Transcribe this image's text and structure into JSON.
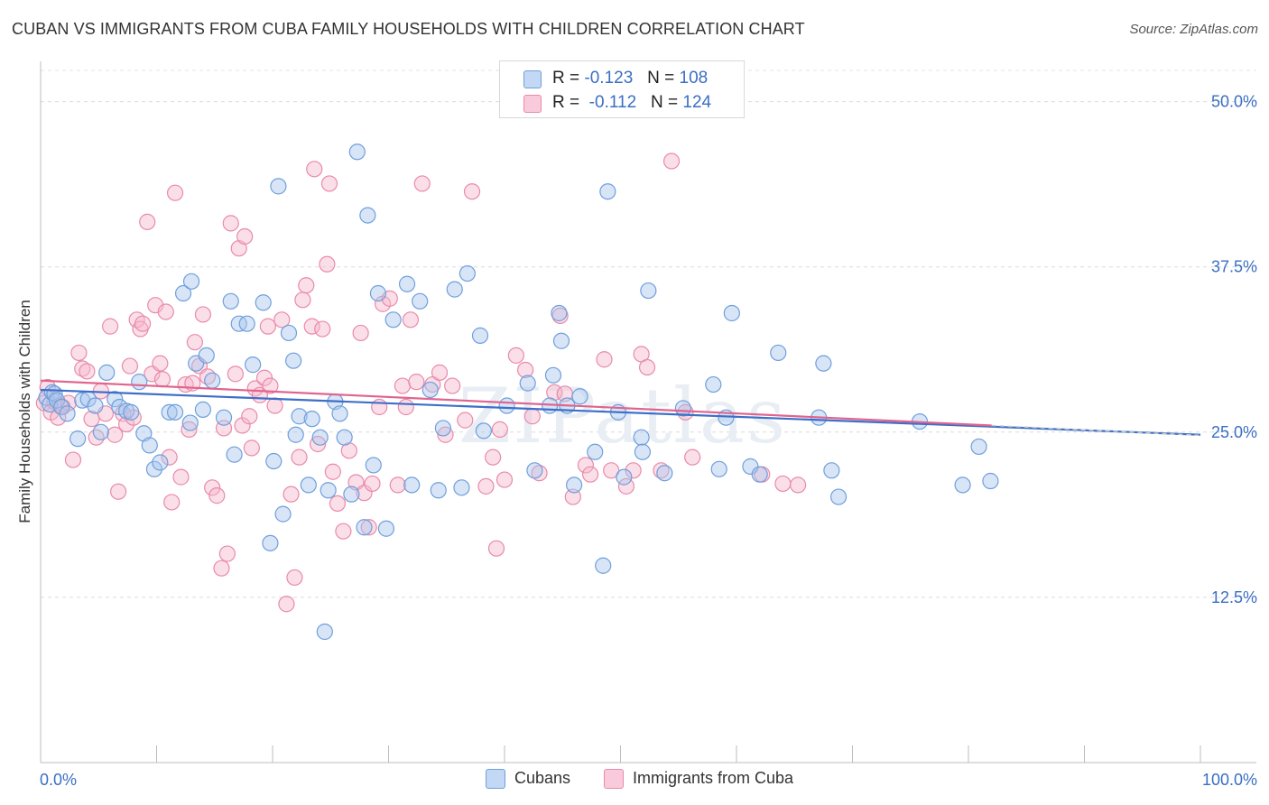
{
  "header": {
    "title": "CUBAN VS IMMIGRANTS FROM CUBA FAMILY HOUSEHOLDS WITH CHILDREN CORRELATION CHART",
    "source": "Source: ZipAtlas.com"
  },
  "legend": {
    "row1": {
      "r_label": "R =",
      "r_value": "-0.123",
      "n_label": "N =",
      "n_value": "108"
    },
    "row2": {
      "r_label": "R =",
      "r_value": "-0.112",
      "n_label": "N =",
      "n_value": "124"
    }
  },
  "colors": {
    "blue_fill": "#a9c6ee",
    "blue_stroke": "#6f9fdc",
    "blue_line": "#3d6fc8",
    "pink_fill": "#f6b8cc",
    "pink_stroke": "#e98aaa",
    "pink_line": "#e0648f",
    "axis_label": "#3a6fc4"
  },
  "chart_data": {
    "type": "scatter",
    "ylabel": "Family Households with Children",
    "xlim": [
      0,
      100
    ],
    "ylim": [
      0,
      52.5
    ],
    "x_tick_labels": [
      "0.0%",
      "100.0%"
    ],
    "y_ticks": [
      12.5,
      25.0,
      37.5,
      50.0
    ],
    "y_tick_labels": [
      "12.5%",
      "25.0%",
      "37.5%",
      "50.0%"
    ],
    "grid": true,
    "watermark": "ZIPatlas",
    "series": [
      {
        "name": "Cubans",
        "r": -0.123,
        "n": 108,
        "trend": {
          "x": [
            0,
            100
          ],
          "y": [
            28.2,
            24.8
          ]
        },
        "points": [
          [
            0.5,
            27.6
          ],
          [
            0.8,
            27.1
          ],
          [
            1.0,
            28.0
          ],
          [
            1.2,
            27.9
          ],
          [
            1.4,
            27.4
          ],
          [
            1.8,
            26.9
          ],
          [
            2.3,
            26.4
          ],
          [
            3.2,
            24.5
          ],
          [
            3.6,
            27.4
          ],
          [
            4.1,
            27.5
          ],
          [
            4.7,
            27.0
          ],
          [
            5.2,
            25.0
          ],
          [
            5.7,
            29.5
          ],
          [
            6.4,
            27.5
          ],
          [
            6.8,
            26.9
          ],
          [
            7.4,
            26.6
          ],
          [
            7.8,
            26.5
          ],
          [
            8.5,
            28.8
          ],
          [
            8.9,
            24.9
          ],
          [
            9.4,
            24.0
          ],
          [
            9.8,
            22.2
          ],
          [
            10.3,
            22.7
          ],
          [
            11.1,
            26.5
          ],
          [
            11.6,
            26.5
          ],
          [
            12.3,
            35.5
          ],
          [
            12.9,
            25.7
          ],
          [
            13.0,
            36.4
          ],
          [
            13.4,
            30.2
          ],
          [
            14.0,
            26.7
          ],
          [
            14.3,
            30.8
          ],
          [
            14.8,
            28.9
          ],
          [
            15.8,
            26.1
          ],
          [
            16.4,
            34.9
          ],
          [
            16.7,
            23.3
          ],
          [
            17.1,
            33.2
          ],
          [
            17.8,
            33.2
          ],
          [
            18.3,
            30.1
          ],
          [
            19.2,
            34.8
          ],
          [
            19.8,
            16.6
          ],
          [
            20.1,
            22.8
          ],
          [
            20.5,
            43.6
          ],
          [
            20.9,
            18.8
          ],
          [
            21.4,
            32.5
          ],
          [
            21.8,
            30.4
          ],
          [
            22.0,
            24.8
          ],
          [
            22.3,
            26.2
          ],
          [
            23.1,
            21.0
          ],
          [
            23.4,
            26.0
          ],
          [
            24.1,
            24.6
          ],
          [
            24.5,
            9.9
          ],
          [
            24.8,
            20.6
          ],
          [
            25.4,
            27.3
          ],
          [
            25.8,
            26.4
          ],
          [
            26.2,
            24.6
          ],
          [
            26.8,
            20.3
          ],
          [
            27.3,
            46.2
          ],
          [
            27.9,
            17.8
          ],
          [
            28.2,
            41.4
          ],
          [
            28.7,
            22.5
          ],
          [
            29.1,
            35.5
          ],
          [
            29.8,
            17.7
          ],
          [
            30.4,
            33.5
          ],
          [
            31.6,
            36.2
          ],
          [
            32.0,
            21.0
          ],
          [
            32.7,
            34.9
          ],
          [
            33.6,
            28.2
          ],
          [
            34.3,
            20.6
          ],
          [
            34.7,
            25.3
          ],
          [
            35.7,
            35.8
          ],
          [
            36.3,
            20.8
          ],
          [
            36.8,
            37.0
          ],
          [
            37.9,
            32.3
          ],
          [
            38.2,
            25.1
          ],
          [
            40.2,
            27.0
          ],
          [
            42.0,
            28.7
          ],
          [
            42.6,
            22.1
          ],
          [
            43.9,
            27.0
          ],
          [
            44.2,
            29.3
          ],
          [
            44.7,
            34.0
          ],
          [
            44.9,
            31.9
          ],
          [
            45.4,
            27.0
          ],
          [
            46.0,
            21.0
          ],
          [
            46.5,
            27.7
          ],
          [
            47.8,
            23.5
          ],
          [
            48.5,
            14.9
          ],
          [
            48.9,
            43.2
          ],
          [
            49.8,
            26.5
          ],
          [
            50.3,
            21.6
          ],
          [
            51.8,
            24.6
          ],
          [
            51.9,
            23.5
          ],
          [
            52.4,
            35.7
          ],
          [
            53.8,
            21.9
          ],
          [
            55.4,
            26.8
          ],
          [
            58.0,
            28.6
          ],
          [
            58.5,
            22.2
          ],
          [
            59.1,
            26.1
          ],
          [
            59.6,
            34.0
          ],
          [
            61.2,
            22.4
          ],
          [
            62.0,
            21.8
          ],
          [
            63.6,
            31.0
          ],
          [
            67.1,
            26.1
          ],
          [
            67.5,
            30.2
          ],
          [
            68.2,
            22.1
          ],
          [
            68.8,
            20.1
          ],
          [
            75.8,
            25.8
          ],
          [
            79.5,
            21.0
          ],
          [
            80.9,
            23.9
          ],
          [
            81.9,
            21.3
          ]
        ]
      },
      {
        "name": "Immigrants from Cuba",
        "r": -0.112,
        "n": 124,
        "trend": {
          "x": [
            0,
            82
          ],
          "y": [
            28.9,
            25.5
          ]
        },
        "points": [
          [
            0.3,
            27.2
          ],
          [
            0.6,
            28.4
          ],
          [
            0.9,
            26.5
          ],
          [
            1.2,
            27.3
          ],
          [
            1.5,
            26.1
          ],
          [
            1.7,
            27.0
          ],
          [
            1.9,
            26.9
          ],
          [
            2.4,
            27.2
          ],
          [
            2.8,
            22.9
          ],
          [
            3.3,
            31.0
          ],
          [
            3.6,
            29.8
          ],
          [
            4.0,
            29.6
          ],
          [
            4.4,
            26.0
          ],
          [
            4.8,
            24.6
          ],
          [
            5.2,
            28.1
          ],
          [
            5.6,
            26.4
          ],
          [
            6.0,
            33.0
          ],
          [
            6.4,
            24.8
          ],
          [
            6.7,
            20.5
          ],
          [
            7.1,
            26.4
          ],
          [
            7.4,
            25.6
          ],
          [
            7.7,
            30.0
          ],
          [
            8.0,
            26.1
          ],
          [
            8.3,
            33.5
          ],
          [
            8.6,
            32.8
          ],
          [
            8.8,
            33.2
          ],
          [
            9.2,
            40.9
          ],
          [
            9.6,
            29.4
          ],
          [
            9.9,
            34.6
          ],
          [
            10.3,
            30.2
          ],
          [
            10.5,
            29.0
          ],
          [
            10.8,
            34.1
          ],
          [
            11.1,
            23.1
          ],
          [
            11.3,
            19.7
          ],
          [
            11.6,
            43.1
          ],
          [
            12.1,
            21.6
          ],
          [
            12.5,
            28.6
          ],
          [
            12.8,
            25.2
          ],
          [
            13.1,
            28.7
          ],
          [
            13.3,
            31.8
          ],
          [
            13.7,
            30.0
          ],
          [
            14.0,
            33.9
          ],
          [
            14.4,
            29.2
          ],
          [
            14.8,
            20.8
          ],
          [
            15.2,
            20.2
          ],
          [
            15.6,
            14.7
          ],
          [
            15.8,
            25.3
          ],
          [
            16.1,
            15.8
          ],
          [
            16.4,
            40.8
          ],
          [
            16.8,
            29.4
          ],
          [
            17.1,
            38.9
          ],
          [
            17.4,
            25.5
          ],
          [
            17.6,
            39.8
          ],
          [
            18.0,
            26.2
          ],
          [
            18.2,
            23.8
          ],
          [
            18.5,
            28.3
          ],
          [
            18.9,
            27.8
          ],
          [
            19.3,
            29.1
          ],
          [
            19.6,
            33.0
          ],
          [
            19.8,
            28.5
          ],
          [
            20.2,
            27.0
          ],
          [
            20.8,
            33.5
          ],
          [
            21.2,
            12.0
          ],
          [
            21.6,
            20.3
          ],
          [
            21.9,
            14.0
          ],
          [
            22.3,
            23.1
          ],
          [
            22.6,
            35.0
          ],
          [
            22.9,
            36.1
          ],
          [
            23.4,
            33.0
          ],
          [
            23.6,
            44.9
          ],
          [
            23.9,
            24.1
          ],
          [
            24.3,
            32.8
          ],
          [
            24.7,
            37.7
          ],
          [
            24.9,
            43.8
          ],
          [
            25.2,
            22.0
          ],
          [
            25.6,
            19.6
          ],
          [
            26.1,
            17.5
          ],
          [
            26.6,
            23.6
          ],
          [
            27.2,
            21.2
          ],
          [
            27.6,
            32.5
          ],
          [
            27.9,
            20.4
          ],
          [
            28.3,
            17.8
          ],
          [
            28.6,
            21.1
          ],
          [
            29.2,
            26.9
          ],
          [
            29.5,
            34.7
          ],
          [
            30.1,
            35.1
          ],
          [
            30.8,
            21.0
          ],
          [
            31.2,
            28.5
          ],
          [
            31.5,
            26.9
          ],
          [
            31.9,
            33.5
          ],
          [
            32.4,
            28.8
          ],
          [
            32.9,
            43.8
          ],
          [
            33.8,
            28.6
          ],
          [
            34.4,
            29.5
          ],
          [
            34.9,
            24.8
          ],
          [
            35.5,
            28.5
          ],
          [
            36.6,
            25.9
          ],
          [
            37.2,
            43.2
          ],
          [
            38.4,
            20.9
          ],
          [
            39.0,
            23.1
          ],
          [
            39.3,
            16.2
          ],
          [
            39.6,
            25.2
          ],
          [
            40.0,
            21.4
          ],
          [
            41.0,
            30.8
          ],
          [
            41.8,
            29.7
          ],
          [
            42.4,
            26.2
          ],
          [
            43.0,
            21.9
          ],
          [
            44.3,
            28.0
          ],
          [
            44.8,
            33.8
          ],
          [
            45.2,
            27.9
          ],
          [
            45.9,
            20.1
          ],
          [
            47.0,
            22.5
          ],
          [
            47.4,
            21.8
          ],
          [
            48.6,
            30.5
          ],
          [
            49.2,
            22.1
          ],
          [
            50.5,
            20.9
          ],
          [
            51.1,
            22.1
          ],
          [
            51.8,
            30.9
          ],
          [
            52.3,
            29.9
          ],
          [
            53.5,
            22.1
          ],
          [
            54.4,
            45.5
          ],
          [
            55.6,
            26.5
          ],
          [
            56.2,
            23.1
          ],
          [
            62.2,
            21.8
          ],
          [
            64.0,
            21.1
          ],
          [
            65.3,
            21.0
          ]
        ]
      }
    ]
  },
  "bottom_legend": {
    "item1": "Cubans",
    "item2": "Immigrants from Cuba"
  }
}
